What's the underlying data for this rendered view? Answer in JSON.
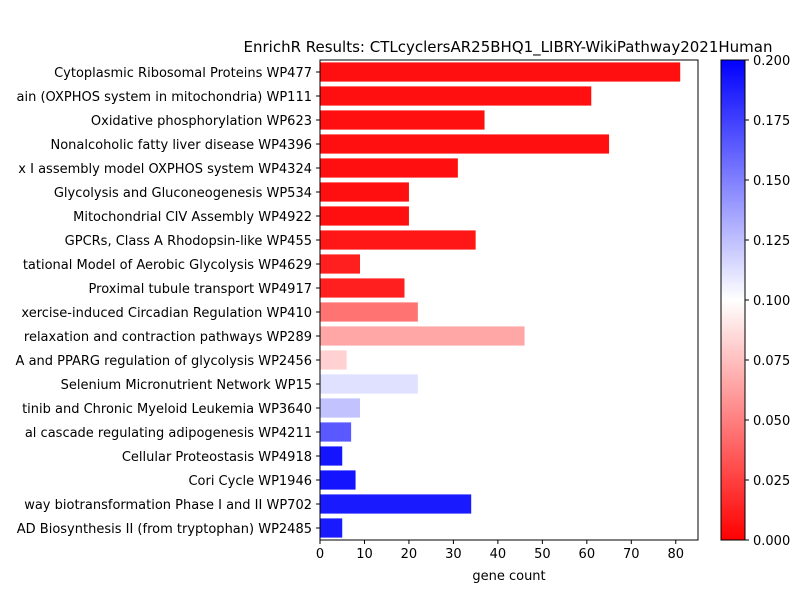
{
  "chart_data": {
    "type": "bar",
    "orientation": "horizontal",
    "title": "EnrichR Results: CTLcyclersAR25BHQ1_LIBRY-WikiPathway2021Human",
    "xlabel": "gene count",
    "ylabel": "",
    "xlim": [
      0,
      85
    ],
    "xticks": [
      0,
      10,
      20,
      30,
      40,
      50,
      60,
      70,
      80
    ],
    "grid": false,
    "categories": [
      "Cytoplasmic Ribosomal Proteins WP477",
      "ain (OXPHOS system in mitochondria) WP111",
      "Oxidative phosphorylation WP623",
      "Nonalcoholic fatty liver disease WP4396",
      "x I assembly model OXPHOS system WP4324",
      "Glycolysis and Gluconeogenesis WP534",
      "Mitochondrial CIV Assembly WP4922",
      "GPCRs, Class A Rhodopsin-like WP455",
      "tational Model of Aerobic Glycolysis WP4629",
      "Proximal tubule transport WP4917",
      "xercise-induced Circadian Regulation WP410",
      "relaxation and contraction pathways WP289",
      "A and PPARG regulation of glycolysis WP2456",
      "Selenium Micronutrient Network WP15",
      "tinib and Chronic Myeloid Leukemia WP3640",
      "al cascade regulating adipogenesis WP4211",
      "Cellular Proteostasis WP4918",
      "Cori Cycle WP1946",
      "way biotransformation Phase I and II WP702",
      "AD Biosynthesis II (from tryptophan) WP2485"
    ],
    "values": [
      81,
      61,
      37,
      65,
      31,
      20,
      20,
      35,
      9,
      19,
      22,
      46,
      6,
      22,
      9,
      7,
      5,
      8,
      34,
      5
    ],
    "color_values": [
      0.006,
      0.006,
      0.006,
      0.006,
      0.006,
      0.006,
      0.006,
      0.009,
      0.012,
      0.012,
      0.045,
      0.065,
      0.082,
      0.112,
      0.124,
      0.165,
      0.192,
      0.192,
      0.19,
      0.19
    ],
    "colorbar": {
      "colormap": "bwr_r",
      "range": [
        0,
        0.2
      ],
      "ticks": [
        "0.000",
        "0.025",
        "0.050",
        "0.075",
        "0.100",
        "0.125",
        "0.150",
        "0.175",
        "0.200"
      ]
    }
  }
}
